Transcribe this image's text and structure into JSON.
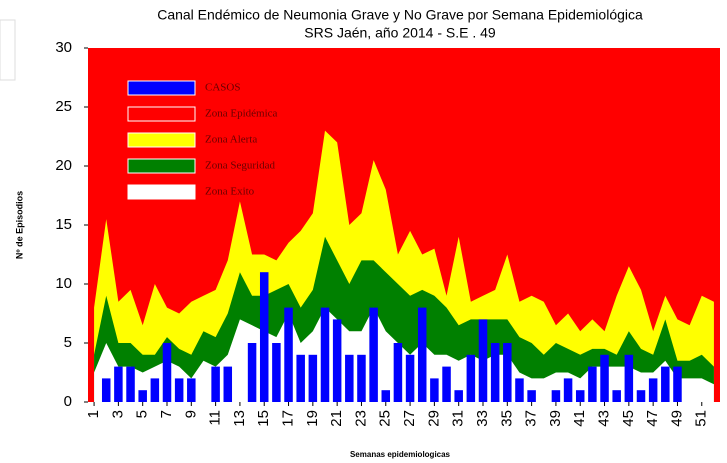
{
  "chart_data": {
    "type": "endemic",
    "title": "Canal Endémico de Neumonia Grave y No Grave por Semana Epidemiológica",
    "subtitle": "SRS Jaén, año 2014 - S.E . 49",
    "x_label": "Semanas epidemiologicas",
    "y_label": "Nº de Episodios",
    "x": [
      1,
      2,
      3,
      4,
      5,
      6,
      7,
      8,
      9,
      10,
      11,
      12,
      13,
      14,
      15,
      16,
      17,
      18,
      19,
      20,
      21,
      22,
      23,
      24,
      25,
      26,
      27,
      28,
      29,
      30,
      31,
      32,
      33,
      34,
      35,
      36,
      37,
      38,
      39,
      40,
      41,
      42,
      43,
      44,
      45,
      46,
      47,
      48,
      49,
      50,
      51,
      52
    ],
    "xlim": [
      0.5,
      52.5
    ],
    "xticks": [
      1,
      3,
      5,
      7,
      9,
      11,
      13,
      15,
      17,
      19,
      21,
      23,
      25,
      27,
      29,
      31,
      33,
      35,
      37,
      39,
      41,
      43,
      45,
      47,
      49,
      51
    ],
    "ylim": [
      0,
      30
    ],
    "yticks": [
      0,
      5,
      10,
      15,
      20,
      25,
      30
    ],
    "series": [
      {
        "name": "CASOS",
        "color": "#0000ff",
        "values": [
          0,
          2,
          3,
          3,
          1,
          2,
          5,
          2,
          2,
          0,
          3,
          3,
          0,
          5,
          11,
          5,
          8,
          4,
          4,
          8,
          7,
          4,
          4,
          8,
          1,
          5,
          4,
          8,
          2,
          3,
          1,
          4,
          7,
          5,
          5,
          2,
          1,
          0,
          1,
          2,
          1,
          3,
          4,
          1,
          4,
          1,
          2,
          3,
          3,
          0,
          0,
          0
        ]
      },
      {
        "name": "Zona Epidémica",
        "color": "#ff0000"
      },
      {
        "name": "Zona Alerta",
        "color": "#ffff00",
        "values": [
          8,
          15.5,
          8.5,
          9.5,
          6.5,
          10,
          8,
          7.5,
          8.5,
          9,
          9.5,
          12,
          17,
          12.5,
          12.5,
          12,
          13.5,
          14.5,
          16,
          23,
          22,
          15,
          16,
          20.5,
          18,
          12.5,
          14.5,
          12.5,
          13,
          9,
          14,
          8.5,
          9,
          9.5,
          12.5,
          8.5,
          9,
          8.5,
          6.5,
          7.5,
          6,
          7,
          6,
          9,
          11.5,
          9.5,
          6,
          9,
          7,
          6.5,
          9,
          8.5
        ]
      },
      {
        "name": "Zona Seguridad",
        "color": "#008000",
        "values": [
          4,
          9,
          5,
          5,
          4,
          4,
          5.5,
          4.5,
          4,
          6,
          5.5,
          7.5,
          11,
          9,
          9,
          9.5,
          10,
          8,
          9.5,
          14,
          12,
          10,
          12,
          12,
          11,
          10,
          9,
          9.5,
          9,
          8,
          6.5,
          7,
          7,
          7,
          7,
          5.5,
          5,
          4,
          5,
          4.5,
          4,
          4.5,
          4.5,
          4,
          6,
          4.5,
          4,
          7,
          3.5,
          3.5,
          4,
          3
        ]
      },
      {
        "name": "Zona Exito",
        "color": "#ffffff",
        "values": [
          2.5,
          5,
          3,
          3,
          2.5,
          3,
          3.5,
          3,
          2,
          3.5,
          3,
          4,
          7,
          6.5,
          6,
          5.5,
          7.5,
          5,
          6,
          8,
          7,
          6,
          6,
          8,
          6,
          5,
          4,
          5,
          4,
          4,
          3.5,
          4,
          3.5,
          4,
          4,
          2.5,
          2,
          2,
          2.5,
          2.5,
          2,
          3,
          3,
          3,
          3,
          2.5,
          2.5,
          3.5,
          2,
          2,
          2,
          1.5
        ]
      }
    ]
  }
}
